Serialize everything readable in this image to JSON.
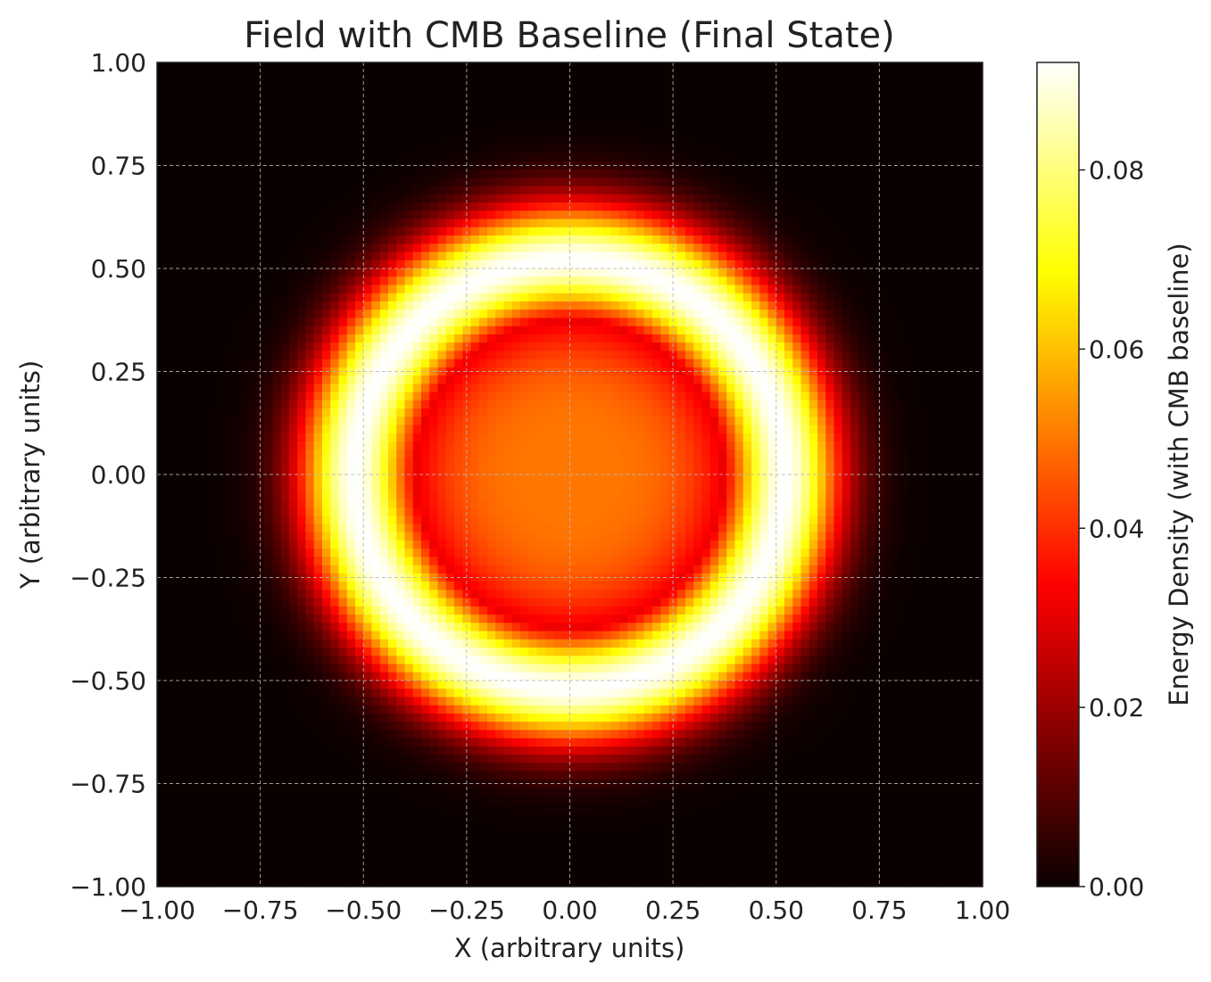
{
  "chart_data": {
    "type": "heatmap",
    "title": "Field with CMB Baseline (Final State)",
    "xlabel": "X (arbitrary units)",
    "ylabel": "Y (arbitrary units)",
    "xlim": [
      -1.0,
      1.0
    ],
    "ylim": [
      -1.0,
      1.0
    ],
    "x_ticks": [
      "−1.00",
      "−0.75",
      "−0.50",
      "−0.25",
      "0.00",
      "0.25",
      "0.50",
      "0.75",
      "1.00"
    ],
    "y_ticks": [
      "−1.00",
      "−0.75",
      "−0.50",
      "−0.25",
      "0.00",
      "0.25",
      "0.50",
      "0.75",
      "1.00"
    ],
    "grid": true,
    "colormap": "hot",
    "colorbar": {
      "label": "Energy Density (with CMB baseline)",
      "min": 0.0,
      "max": 0.092,
      "ticks": [
        "0.00",
        "0.02",
        "0.04",
        "0.06",
        "0.08"
      ],
      "tick_values": [
        0.0,
        0.02,
        0.04,
        0.06,
        0.08
      ]
    },
    "field": {
      "grid_size": 100,
      "ring_radius": 0.52,
      "ring_width": 0.14,
      "ring_peak": 0.092,
      "center_value": 0.05,
      "center_width": 0.45,
      "baseline": 0.0
    }
  }
}
